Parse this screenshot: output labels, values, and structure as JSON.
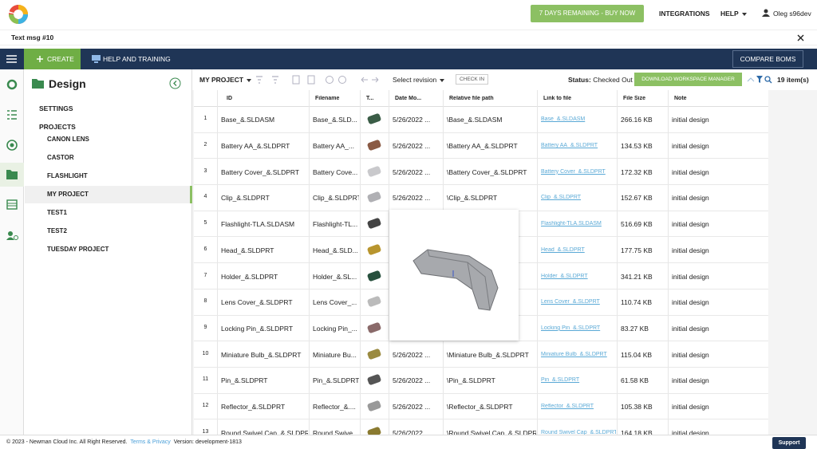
{
  "header": {
    "buy_now": "7 DAYS REMAINING - BUY NOW",
    "integrations": "INTEGRATIONS",
    "help": "HELP",
    "user": "Oleg s96dev"
  },
  "message": {
    "text": "Text msg #10"
  },
  "nav": {
    "create": "CREATE",
    "help_training": "HELP AND TRAINING",
    "compare": "COMPARE BOMS"
  },
  "sidebar": {
    "title": "Design",
    "sections": [
      "SETTINGS",
      "PROJECTS"
    ],
    "projects": [
      "CANON LENS",
      "CASTOR",
      "FLASHLIGHT",
      "MY PROJECT",
      "TEST1",
      "TEST2",
      "TUESDAY PROJECT"
    ],
    "selected": 3
  },
  "toolbar": {
    "project": "MY PROJECT",
    "revision": "Select revision",
    "check_in": "CHECK IN",
    "status_label": "Status:",
    "status": "Checked Out",
    "download": "DOWNLOAD WORKSPACE MANAGER",
    "count": "19 item(s)"
  },
  "table": {
    "columns": [
      "ID",
      "Filename",
      "T...",
      "Date Mo...",
      "Relative file path",
      "Link to file",
      "File Size",
      "Note"
    ],
    "rows": [
      {
        "num": 1,
        "id": "Base_&.SLDASM",
        "filename": "Base_&.SLD...",
        "date": "5/26/2022 ...",
        "path": "\\Base_&.SLDASM",
        "link": "Base_&.SLDASM",
        "size": "266.16 KB",
        "note": "initial design"
      },
      {
        "num": 2,
        "id": "Battery AA_&.SLDPRT",
        "filename": "Battery AA_...",
        "date": "5/26/2022 ...",
        "path": "\\Battery AA_&.SLDPRT",
        "link": "Battery AA_&.SLDPRT",
        "size": "134.53 KB",
        "note": "initial design"
      },
      {
        "num": 3,
        "id": "Battery Cover_&.SLDPRT",
        "filename": "Battery Cove...",
        "date": "5/26/2022 ...",
        "path": "\\Battery Cover_&.SLDPRT",
        "link": "Battery Cover_&.SLDPRT",
        "size": "172.32 KB",
        "note": "initial design"
      },
      {
        "num": 4,
        "id": "Clip_&.SLDPRT",
        "filename": "Clip_&.SLDPRT",
        "date": "5/26/2022 ...",
        "path": "\\Clip_&.SLDPRT",
        "link": "Clip_&.SLDPRT",
        "size": "152.67 KB",
        "note": "initial design"
      },
      {
        "num": 5,
        "id": "Flashlight-TLA.SLDASM",
        "filename": "Flashlight-TL...",
        "link": "Flashlight-TLA.SLDASM",
        "size": "516.69 KB",
        "note": "initial design"
      },
      {
        "num": 6,
        "id": "Head_&.SLDPRT",
        "filename": "Head_&.SLD...",
        "link": "Head_&.SLDPRT",
        "size": "177.75 KB",
        "note": "initial design"
      },
      {
        "num": 7,
        "id": "Holder_&.SLDPRT",
        "filename": "Holder_&.SL...",
        "link": "Holder_&.SLDPRT",
        "size": "341.21 KB",
        "note": "initial design"
      },
      {
        "num": 8,
        "id": "Lens Cover_&.SLDPRT",
        "filename": "Lens Cover_...",
        "link": "Lens Cover_&.SLDPRT",
        "size": "110.74 KB",
        "note": "initial design"
      },
      {
        "num": 9,
        "id": "Locking Pin_&.SLDPRT",
        "filename": "Locking Pin_...",
        "link": "Locking Pin_&.SLDPRT",
        "size": "83.27 KB",
        "note": "initial design"
      },
      {
        "num": 10,
        "id": "Miniature Bulb_&.SLDPRT",
        "filename": "Miniature Bu...",
        "date": "5/26/2022 ...",
        "path": "\\Miniature Bulb_&.SLDPRT",
        "link": "Miniature Bulb_&.SLDPRT",
        "size": "115.04 KB",
        "note": "initial design"
      },
      {
        "num": 11,
        "id": "Pin_&.SLDPRT",
        "filename": "Pin_&.SLDPRT",
        "date": "5/26/2022 ...",
        "path": "\\Pin_&.SLDPRT",
        "link": "Pin_&.SLDPRT",
        "size": "61.58 KB",
        "note": "initial design"
      },
      {
        "num": 12,
        "id": "Reflector_&.SLDPRT",
        "filename": "Reflector_&....",
        "date": "5/26/2022 ...",
        "path": "\\Reflector_&.SLDPRT",
        "link": "Reflector_&.SLDPRT",
        "size": "105.38 KB",
        "note": "initial design"
      },
      {
        "num": 13,
        "id": "Round Swivel Cap_&.SLDPRT",
        "filename": "Round Swive...",
        "date": "5/26/2022 ...",
        "path": "\\Round Swivel Cap_&.SLDPRT",
        "link": "Round Swivel Cap_&.SLDPRT",
        "size": "164.18 KB",
        "note": "initial design"
      }
    ]
  },
  "footer": {
    "copyright": "© 2023 - Newman Cloud Inc. All Right Reserved.",
    "terms": "Terms",
    "amp": "&",
    "privacy": "Privacy",
    "version": "Version: development-1813",
    "support": "Support"
  }
}
